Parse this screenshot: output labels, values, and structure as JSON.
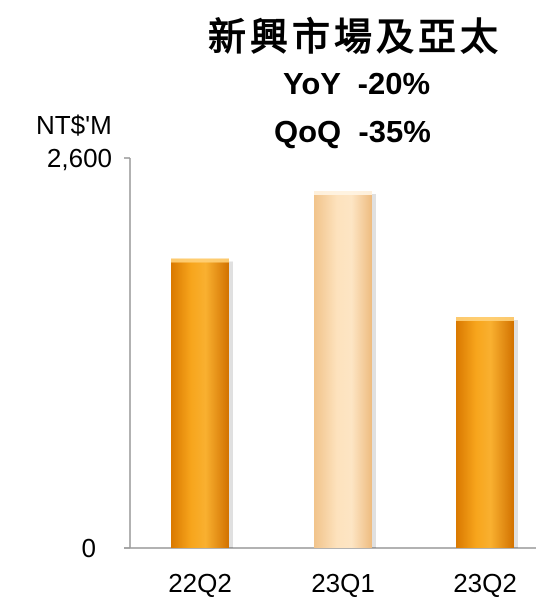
{
  "chart_data": {
    "type": "bar",
    "title": "新興市場及亞太",
    "annotations": [
      "YoY  -20%",
      "QoQ  -35%"
    ],
    "ylabel": "NT$'M",
    "ylim": [
      0,
      2600
    ],
    "yticks": [
      "2,600",
      "0"
    ],
    "categories": [
      "22Q2",
      "23Q1",
      "23Q2"
    ],
    "values": [
      1930,
      2380,
      1540
    ],
    "colors": [
      "#f59b12",
      "#fbd6a6",
      "#f59b12"
    ],
    "grid": false
  }
}
